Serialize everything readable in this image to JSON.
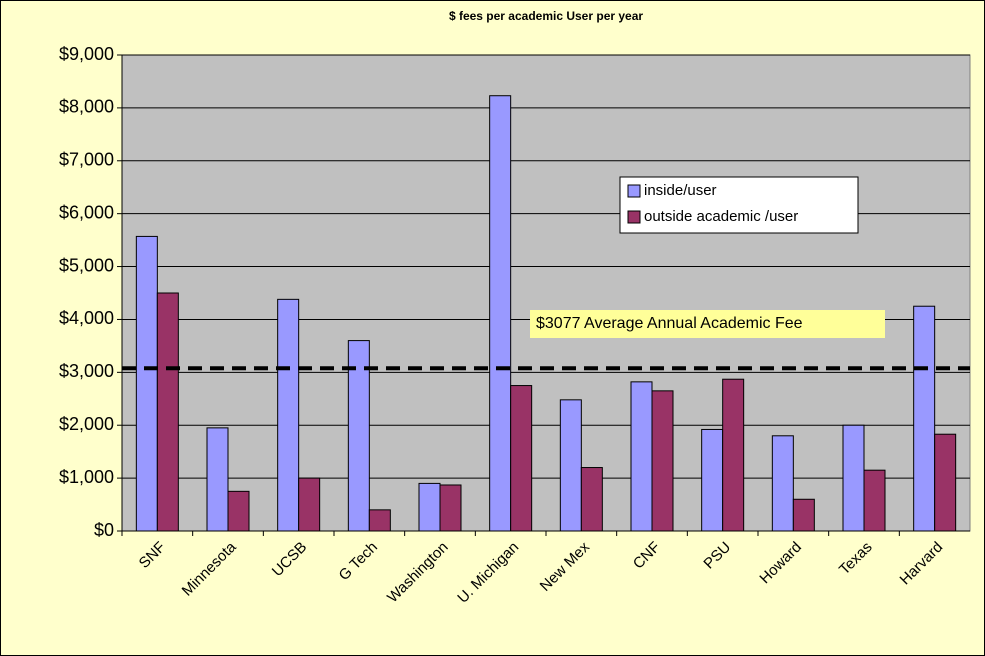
{
  "chart_data": {
    "type": "bar",
    "title": "$ fees per academic User per year",
    "categories": [
      "SNF",
      "Minnesota",
      "UCSB",
      "G Tech",
      "Washington",
      "U. Michigan",
      "New Mex",
      "CNF",
      "PSU",
      "Howard",
      "Texas",
      "Harvard"
    ],
    "series": [
      {
        "name": "inside/user",
        "color": "#9999ff",
        "values": [
          5570,
          1950,
          4380,
          3600,
          900,
          8230,
          2480,
          2820,
          1920,
          1800,
          2000,
          4250
        ]
      },
      {
        "name": "outside academic /user",
        "color": "#993366",
        "values": [
          4500,
          750,
          1000,
          400,
          870,
          2750,
          1200,
          2650,
          2870,
          600,
          1150,
          1830
        ]
      }
    ],
    "ylim": [
      0,
      9000
    ],
    "yticks": [
      {
        "value": 0,
        "label": "$0"
      },
      {
        "value": 1000,
        "label": "$1,000"
      },
      {
        "value": 2000,
        "label": "$2,000"
      },
      {
        "value": 3000,
        "label": "$3,000"
      },
      {
        "value": 4000,
        "label": "$4,000"
      },
      {
        "value": 5000,
        "label": "$5,000"
      },
      {
        "value": 6000,
        "label": "$6,000"
      },
      {
        "value": 7000,
        "label": "$7,000"
      },
      {
        "value": 8000,
        "label": "$8,000"
      },
      {
        "value": 9000,
        "label": "$9,000"
      }
    ],
    "grid": true,
    "legend": "upper right",
    "reference_line": {
      "value": 3077,
      "label": "$3077  Average Annual Academic Fee"
    }
  }
}
